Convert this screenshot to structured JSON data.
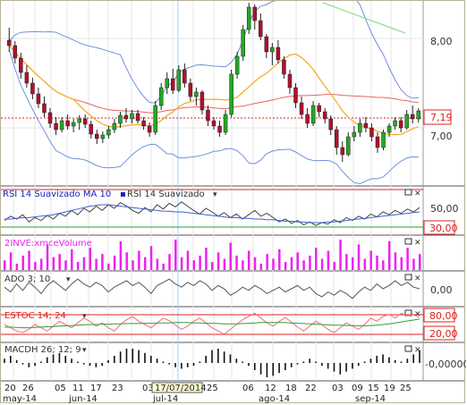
{
  "panels": {
    "rsi": {
      "title": "RSI 14 Suavizado MA 10",
      "title2": "RSI 14 Suavizado",
      "levels": [
        "50,00",
        "30,00"
      ]
    },
    "volume": {
      "title": "2INVE:xmceVolume"
    },
    "ado": {
      "title": "ADO 3; 10",
      "levels": [
        "0,00"
      ]
    },
    "stoc": {
      "title": "ESTOC 14; 24",
      "levels": [
        "80,00",
        "20,00"
      ]
    },
    "macd": {
      "title": "MACDH 26; 12; 9",
      "levels": [
        "0,00000"
      ]
    }
  },
  "price_axis": {
    "labels": [
      "8,00",
      "7,00"
    ],
    "current": "7,19"
  },
  "date_axis": {
    "days": [
      "20",
      "26",
      "05",
      "11",
      "17",
      "23",
      "03",
      "17/07/2014",
      "25",
      "06",
      "12",
      "18",
      "22",
      "03",
      "09",
      "15",
      "19",
      "25"
    ],
    "months": [
      "may-14",
      "jun-14",
      "jul-14",
      "ago-14",
      "sep-14"
    ]
  },
  "colors": {
    "candle_up": "#22aa22",
    "candle_down": "#b01030",
    "band": "#7090e0",
    "ma_orange": "#f0b030",
    "ma_red": "#f06060",
    "ma_green": "#90e090",
    "volume": "#ee22ee",
    "current_price": "#e02020"
  },
  "chart_data": {
    "type": "candlestick",
    "ylim": [
      6.4,
      8.4
    ],
    "yticks": [
      8.0,
      7.0
    ],
    "current_price": 7.19,
    "candles": [
      [
        7.98,
        8.12,
        7.85,
        7.92
      ],
      [
        7.92,
        7.97,
        7.72,
        7.78
      ],
      [
        7.78,
        7.84,
        7.55,
        7.62
      ],
      [
        7.62,
        7.7,
        7.45,
        7.5
      ],
      [
        7.5,
        7.56,
        7.32,
        7.38
      ],
      [
        7.38,
        7.45,
        7.22,
        7.27
      ],
      [
        7.27,
        7.35,
        7.12,
        7.17
      ],
      [
        7.17,
        7.22,
        7.0,
        7.05
      ],
      [
        7.05,
        7.12,
        6.92,
        6.98
      ],
      [
        6.98,
        7.12,
        6.95,
        7.08
      ],
      [
        7.08,
        7.15,
        6.98,
        7.02
      ],
      [
        7.02,
        7.1,
        6.95,
        7.06
      ],
      [
        7.06,
        7.14,
        6.98,
        7.1
      ],
      [
        7.1,
        7.15,
        7.0,
        7.04
      ],
      [
        7.04,
        7.08,
        6.88,
        6.93
      ],
      [
        6.93,
        6.98,
        6.82,
        6.88
      ],
      [
        6.88,
        6.96,
        6.83,
        6.92
      ],
      [
        6.92,
        7.02,
        6.88,
        6.98
      ],
      [
        6.98,
        7.1,
        6.94,
        7.05
      ],
      [
        7.05,
        7.18,
        7.0,
        7.14
      ],
      [
        7.14,
        7.22,
        7.06,
        7.1
      ],
      [
        7.1,
        7.2,
        7.05,
        7.16
      ],
      [
        7.16,
        7.2,
        7.05,
        7.08
      ],
      [
        7.08,
        7.12,
        6.98,
        7.02
      ],
      [
        7.02,
        7.06,
        6.9,
        6.95
      ],
      [
        6.95,
        7.3,
        6.92,
        7.25
      ],
      [
        7.25,
        7.5,
        7.2,
        7.45
      ],
      [
        7.45,
        7.62,
        7.38,
        7.55
      ],
      [
        7.55,
        7.66,
        7.38,
        7.42
      ],
      [
        7.42,
        7.7,
        7.4,
        7.65
      ],
      [
        7.65,
        7.72,
        7.45,
        7.5
      ],
      [
        7.5,
        7.55,
        7.3,
        7.35
      ],
      [
        7.35,
        7.45,
        7.25,
        7.4
      ],
      [
        7.4,
        7.42,
        7.15,
        7.2
      ],
      [
        7.2,
        7.25,
        7.02,
        7.08
      ],
      [
        7.08,
        7.12,
        6.98,
        7.02
      ],
      [
        7.02,
        7.08,
        6.9,
        6.95
      ],
      [
        6.95,
        7.2,
        6.92,
        7.15
      ],
      [
        7.15,
        7.65,
        7.12,
        7.6
      ],
      [
        7.6,
        7.85,
        7.55,
        7.8
      ],
      [
        7.8,
        8.15,
        7.75,
        8.1
      ],
      [
        8.1,
        8.4,
        8.05,
        8.35
      ],
      [
        8.35,
        8.38,
        8.1,
        8.2
      ],
      [
        8.2,
        8.28,
        7.98,
        8.02
      ],
      [
        8.02,
        8.05,
        7.78,
        7.85
      ],
      [
        7.85,
        7.95,
        7.7,
        7.9
      ],
      [
        7.9,
        7.98,
        7.72,
        7.76
      ],
      [
        7.76,
        7.8,
        7.55,
        7.6
      ],
      [
        7.6,
        7.65,
        7.38,
        7.45
      ],
      [
        7.45,
        7.5,
        7.22,
        7.28
      ],
      [
        7.28,
        7.35,
        7.1,
        7.15
      ],
      [
        7.15,
        7.22,
        7.0,
        7.05
      ],
      [
        7.05,
        7.3,
        7.02,
        7.25
      ],
      [
        7.25,
        7.28,
        7.12,
        7.18
      ],
      [
        7.18,
        7.22,
        7.05,
        7.1
      ],
      [
        7.1,
        7.14,
        6.92,
        6.98
      ],
      [
        6.98,
        7.02,
        6.7,
        6.78
      ],
      [
        6.78,
        6.85,
        6.62,
        6.7
      ],
      [
        6.7,
        6.95,
        6.68,
        6.9
      ],
      [
        6.9,
        7.02,
        6.85,
        6.95
      ],
      [
        6.95,
        7.1,
        6.9,
        7.05
      ],
      [
        7.05,
        7.12,
        6.95,
        7.0
      ],
      [
        7.0,
        7.05,
        6.85,
        6.9
      ],
      [
        6.9,
        6.95,
        6.72,
        6.78
      ],
      [
        6.78,
        6.98,
        6.75,
        6.95
      ],
      [
        6.95,
        7.05,
        6.9,
        7.02
      ],
      [
        7.02,
        7.12,
        6.98,
        7.08
      ],
      [
        7.08,
        7.12,
        6.95,
        7.0
      ],
      [
        7.0,
        7.2,
        6.98,
        7.15
      ],
      [
        7.15,
        7.25,
        7.05,
        7.1
      ],
      [
        7.1,
        7.22,
        7.06,
        7.19
      ]
    ],
    "rsi": [
      38,
      44,
      40,
      46,
      36,
      42,
      38,
      45,
      40,
      48,
      44,
      52,
      46,
      55,
      50,
      58,
      52,
      60,
      55,
      63,
      58,
      52,
      48,
      56,
      50,
      60,
      54,
      62,
      57,
      64,
      58,
      52,
      47,
      55,
      50,
      44,
      49,
      42,
      47,
      40,
      46,
      52,
      44,
      48,
      42,
      36,
      40,
      34,
      38,
      32,
      36,
      31,
      35,
      33,
      39,
      35,
      42,
      38,
      44,
      40,
      47,
      43,
      50,
      46,
      52,
      48,
      54,
      50,
      56
    ],
    "rsi_ma": [
      40,
      40,
      41,
      42,
      42,
      43,
      44,
      45,
      46,
      48,
      50,
      52,
      54,
      56,
      58,
      59,
      60,
      60,
      59,
      58,
      57,
      56,
      55,
      54,
      53,
      52,
      51,
      51,
      50,
      50,
      49,
      48,
      47,
      46,
      45,
      44,
      43,
      42,
      42,
      41,
      41,
      40,
      40,
      39,
      39,
      38,
      37,
      37,
      36,
      36,
      35,
      35,
      35,
      36,
      36,
      37,
      38,
      39,
      40,
      41,
      42,
      43,
      44,
      45,
      46,
      47,
      48,
      49,
      50
    ],
    "volume": [
      30,
      55,
      20,
      45,
      60,
      25,
      35,
      80,
      40,
      50,
      30,
      65,
      25,
      40,
      70,
      35,
      50,
      20,
      45,
      90,
      55,
      30,
      60,
      40,
      75,
      35,
      20,
      50,
      95,
      40,
      60,
      30,
      45,
      70,
      25,
      55,
      35,
      85,
      45,
      30,
      60,
      40,
      20,
      50,
      35,
      65,
      25,
      40,
      55,
      30,
      45,
      70,
      35,
      60,
      25,
      95,
      50,
      40,
      80,
      35,
      60,
      45,
      30,
      90,
      55,
      40,
      70,
      35,
      50
    ],
    "ado": [
      0.1,
      -0.2,
      0.3,
      -0.1,
      0.4,
      0.1,
      -0.3,
      0.2,
      0.5,
      0.2,
      -0.1,
      0.3,
      0.6,
      0.3,
      0.1,
      0.4,
      0.2,
      -0.2,
      0.1,
      0.3,
      0.5,
      0.2,
      0.4,
      0.1,
      -0.3,
      0.2,
      0.4,
      0.6,
      0.3,
      0.1,
      0.4,
      0.2,
      0.5,
      0.3,
      -0.1,
      0.2,
      0.0,
      -0.4,
      -0.2,
      0.1,
      -0.1,
      0.2,
      0.0,
      -0.3,
      -0.1,
      0.1,
      -0.2,
      0.0,
      0.2,
      -0.1,
      0.1,
      -0.3,
      -0.5,
      -0.2,
      -0.4,
      -0.1,
      -0.3,
      -0.6,
      -0.2,
      0.1,
      -0.1,
      0.3,
      0.0,
      0.2,
      0.5,
      0.2,
      0.4,
      0.1,
      0.0
    ],
    "stoc": [
      50,
      40,
      30,
      25,
      35,
      50,
      40,
      30,
      45,
      60,
      50,
      40,
      55,
      70,
      60,
      45,
      55,
      40,
      30,
      50,
      65,
      75,
      60,
      50,
      40,
      55,
      70,
      62,
      48,
      35,
      45,
      60,
      70,
      55,
      40,
      30,
      20,
      35,
      50,
      65,
      75,
      85,
      70,
      55,
      45,
      60,
      72,
      58,
      42,
      30,
      45,
      60,
      50,
      35,
      25,
      40,
      55,
      45,
      35,
      50,
      70,
      60,
      75,
      82,
      70,
      85,
      78,
      80,
      72
    ],
    "stoc_signal": [
      42,
      42,
      41,
      40,
      40,
      41,
      42,
      43,
      44,
      45,
      46,
      47,
      48,
      49,
      50,
      50,
      51,
      51,
      52,
      52,
      53,
      53,
      53,
      54,
      54,
      55,
      55,
      55,
      56,
      56,
      56,
      55,
      55,
      54,
      54,
      53,
      52,
      52,
      52,
      53,
      54,
      55,
      56,
      56,
      56,
      56,
      56,
      55,
      54,
      53,
      52,
      51,
      50,
      49,
      48,
      48,
      47,
      47,
      46,
      46,
      47,
      48,
      50,
      52,
      55,
      58,
      61,
      64,
      67
    ],
    "macd": [
      0.3,
      0.5,
      0.2,
      -0.1,
      -0.3,
      -0.2,
      0.1,
      0.4,
      0.6,
      0.7,
      0.5,
      0.3,
      0.1,
      -0.1,
      -0.2,
      -0.3,
      -0.2,
      0.2,
      0.5,
      0.8,
      1.0,
      1.0,
      0.9,
      0.7,
      0.5,
      0.3,
      0.1,
      -0.1,
      -0.3,
      -0.4,
      -0.3,
      -0.2,
      0.1,
      0.5,
      0.9,
      1.0,
      0.8,
      0.6,
      0.3,
      0.1,
      -0.2,
      -0.5,
      -0.8,
      -1.0,
      -0.9,
      -0.7,
      -0.5,
      -0.3,
      -0.1,
      0.1,
      0.3,
      0.1,
      -0.2,
      -0.4,
      -0.6,
      -0.8,
      -0.6,
      -0.4,
      -0.2,
      0.1,
      0.3,
      0.5,
      0.6,
      0.4,
      0.2,
      0.1,
      0.3,
      0.6,
      0.9
    ]
  }
}
